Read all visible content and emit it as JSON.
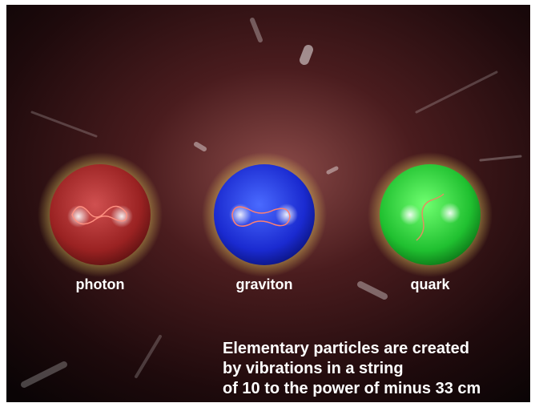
{
  "particles": [
    {
      "label": "photon"
    },
    {
      "label": "graviton"
    },
    {
      "label": "quark"
    }
  ],
  "caption": [
    "Elementary particles are created",
    "by vibrations in a string",
    "of 10 to the power of minus 33 cm"
  ]
}
